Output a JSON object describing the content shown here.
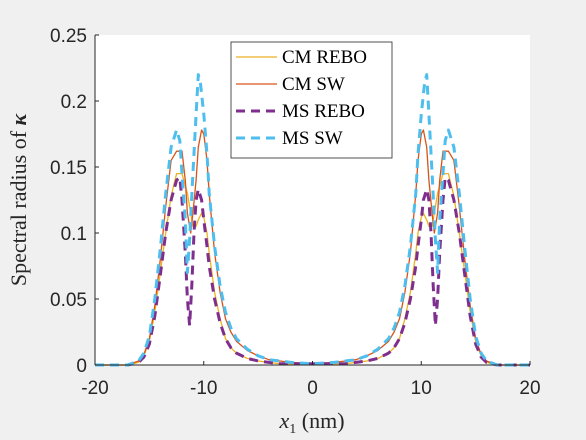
{
  "chart_data": {
    "type": "line",
    "xlabel_var": "x",
    "xlabel_sub": "1",
    "xlabel_unit": " (nm)",
    "ylabel_text": "Spectral radius of ",
    "ylabel_symbol": "κ",
    "xlim": [
      -20,
      20
    ],
    "ylim": [
      0,
      0.25
    ],
    "xticks": [
      -20,
      -10,
      0,
      10,
      20
    ],
    "xtick_labels": [
      "-20",
      "-10",
      "0",
      "10",
      "20"
    ],
    "yticks": [
      0,
      0.05,
      0.1,
      0.15,
      0.2,
      0.25
    ],
    "ytick_labels": [
      "0",
      "0.05",
      "0.1",
      "0.15",
      "0.2",
      "0.25"
    ],
    "grid": false,
    "legend_position": "top-center",
    "series": [
      {
        "name": "CM REBO",
        "color": "#edb120",
        "style": "solid",
        "x": [
          -20,
          -17,
          -16,
          -15.5,
          -15,
          -14.5,
          -14,
          -13.5,
          -13,
          -12.5,
          -12,
          -11.5,
          -11.2,
          -11,
          -10.7,
          -10.5,
          -10.2,
          -10,
          -9.7,
          -9.5,
          -9,
          -8.5,
          -8,
          -7.5,
          -7,
          -6,
          -5,
          -4,
          -3,
          -2,
          0,
          2,
          3,
          4,
          5,
          6,
          7,
          7.5,
          8,
          8.5,
          9,
          9.5,
          9.7,
          10,
          10.2,
          10.5,
          10.7,
          11,
          11.2,
          11.5,
          12,
          12.5,
          13,
          13.5,
          14,
          14.5,
          15,
          15.5,
          16,
          17,
          20
        ],
        "y": [
          0,
          0,
          0.002,
          0.007,
          0.018,
          0.04,
          0.07,
          0.1,
          0.128,
          0.145,
          0.145,
          0.13,
          0.115,
          0.105,
          0.105,
          0.11,
          0.115,
          0.112,
          0.1,
          0.085,
          0.055,
          0.035,
          0.02,
          0.013,
          0.009,
          0.005,
          0.003,
          0.002,
          0.001,
          0.001,
          0.001,
          0.001,
          0.001,
          0.002,
          0.003,
          0.005,
          0.009,
          0.013,
          0.02,
          0.035,
          0.055,
          0.085,
          0.1,
          0.112,
          0.115,
          0.11,
          0.105,
          0.105,
          0.115,
          0.13,
          0.145,
          0.145,
          0.128,
          0.1,
          0.07,
          0.04,
          0.018,
          0.007,
          0.002,
          0,
          0
        ]
      },
      {
        "name": "CM SW",
        "color": "#d95319",
        "style": "solid",
        "x": [
          -20,
          -17,
          -16,
          -15.5,
          -15,
          -14.5,
          -14,
          -13.5,
          -13,
          -12.5,
          -12,
          -11.7,
          -11.5,
          -11.2,
          -11,
          -10.7,
          -10.5,
          -10.2,
          -10,
          -9.7,
          -9.5,
          -9,
          -8.5,
          -8,
          -7.5,
          -7,
          -6,
          -5,
          -4,
          -3,
          -2,
          0,
          2,
          3,
          4,
          5,
          6,
          7,
          7.5,
          8,
          8.5,
          9,
          9.5,
          9.7,
          10,
          10.2,
          10.5,
          10.7,
          11,
          11.2,
          11.5,
          11.7,
          12,
          12.5,
          13,
          13.5,
          14,
          14.5,
          15,
          15.5,
          16,
          17,
          20
        ],
        "y": [
          0,
          0,
          0.003,
          0.008,
          0.02,
          0.045,
          0.08,
          0.12,
          0.155,
          0.162,
          0.162,
          0.14,
          0.115,
          0.1,
          0.115,
          0.14,
          0.165,
          0.178,
          0.175,
          0.155,
          0.13,
          0.085,
          0.055,
          0.035,
          0.025,
          0.018,
          0.011,
          0.007,
          0.004,
          0.003,
          0.002,
          0.001,
          0.002,
          0.003,
          0.004,
          0.007,
          0.011,
          0.018,
          0.025,
          0.035,
          0.055,
          0.085,
          0.13,
          0.155,
          0.175,
          0.178,
          0.165,
          0.14,
          0.115,
          0.1,
          0.115,
          0.14,
          0.162,
          0.162,
          0.155,
          0.12,
          0.08,
          0.045,
          0.02,
          0.008,
          0.003,
          0,
          0
        ]
      },
      {
        "name": "MS REBO",
        "color": "#7e2f8e",
        "style": "dashed",
        "x": [
          -20,
          -17,
          -16,
          -15.5,
          -15,
          -14.5,
          -14,
          -13.5,
          -13,
          -12.5,
          -12.2,
          -12,
          -11.7,
          -11.5,
          -11.3,
          -11.1,
          -10.9,
          -10.7,
          -10.5,
          -10.2,
          -10,
          -9.7,
          -9.5,
          -9,
          -8.5,
          -8,
          -7.5,
          -7,
          -6,
          -5,
          -4,
          -3,
          -2,
          0,
          2,
          3,
          4,
          5,
          6,
          7,
          7.5,
          8,
          8.5,
          9,
          9.5,
          9.7,
          10,
          10.2,
          10.5,
          10.7,
          10.9,
          11.1,
          11.3,
          11.5,
          11.7,
          12,
          12.2,
          12.5,
          13,
          13.5,
          14,
          14.5,
          15,
          15.5,
          16,
          17,
          20
        ],
        "y": [
          0,
          0,
          0.002,
          0.006,
          0.016,
          0.037,
          0.068,
          0.1,
          0.125,
          0.14,
          0.142,
          0.125,
          0.085,
          0.05,
          0.03,
          0.06,
          0.1,
          0.125,
          0.133,
          0.125,
          0.11,
          0.09,
          0.075,
          0.05,
          0.032,
          0.02,
          0.013,
          0.009,
          0.005,
          0.003,
          0.002,
          0.001,
          0.001,
          0.001,
          0.001,
          0.001,
          0.002,
          0.003,
          0.005,
          0.009,
          0.013,
          0.02,
          0.032,
          0.05,
          0.075,
          0.09,
          0.11,
          0.125,
          0.133,
          0.125,
          0.1,
          0.06,
          0.03,
          0.05,
          0.085,
          0.125,
          0.142,
          0.14,
          0.125,
          0.1,
          0.068,
          0.037,
          0.016,
          0.006,
          0.002,
          0,
          0
        ]
      },
      {
        "name": "MS SW",
        "color": "#4dbeee",
        "style": "dashed",
        "x": [
          -20,
          -17,
          -16,
          -15.5,
          -15,
          -14.5,
          -14,
          -13.5,
          -13,
          -12.5,
          -12.2,
          -12,
          -11.7,
          -11.5,
          -11.3,
          -11,
          -10.7,
          -10.5,
          -10.3,
          -10,
          -9.7,
          -9.5,
          -9,
          -8.5,
          -8,
          -7.5,
          -7,
          -6,
          -5,
          -4,
          -3,
          -2,
          0,
          2,
          3,
          4,
          5,
          6,
          7,
          7.5,
          8,
          8.5,
          9,
          9.5,
          9.7,
          10,
          10.3,
          10.5,
          10.7,
          11,
          11.3,
          11.5,
          11.7,
          12,
          12.2,
          12.5,
          13,
          13.5,
          14,
          14.5,
          15,
          15.5,
          16,
          17,
          20
        ],
        "y": [
          0,
          0,
          0.003,
          0.009,
          0.022,
          0.05,
          0.088,
          0.13,
          0.165,
          0.178,
          0.17,
          0.145,
          0.11,
          0.07,
          0.095,
          0.145,
          0.19,
          0.22,
          0.213,
          0.19,
          0.16,
          0.13,
          0.09,
          0.06,
          0.04,
          0.028,
          0.02,
          0.012,
          0.007,
          0.004,
          0.003,
          0.002,
          0.001,
          0.002,
          0.003,
          0.004,
          0.007,
          0.012,
          0.02,
          0.028,
          0.04,
          0.06,
          0.09,
          0.13,
          0.16,
          0.19,
          0.213,
          0.22,
          0.19,
          0.145,
          0.095,
          0.07,
          0.11,
          0.145,
          0.17,
          0.178,
          0.165,
          0.13,
          0.088,
          0.05,
          0.022,
          0.009,
          0.003,
          0,
          0
        ]
      }
    ]
  }
}
